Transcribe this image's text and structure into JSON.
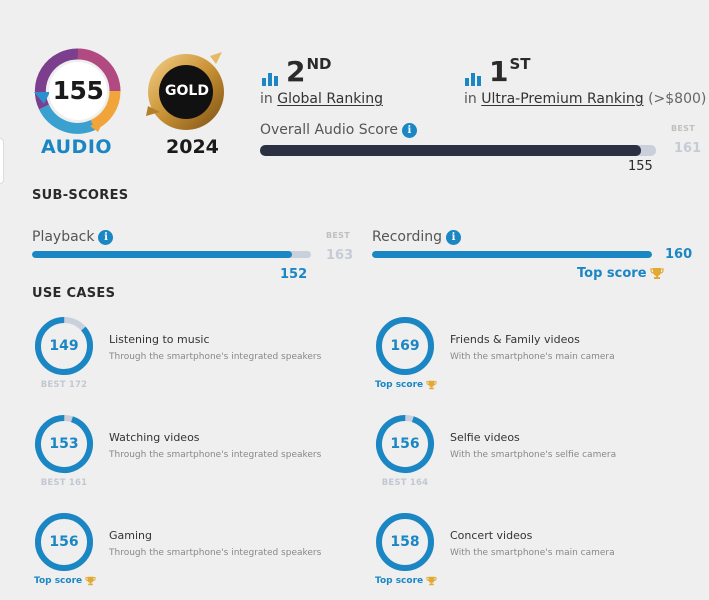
{
  "audio_badge": {
    "score": "155",
    "label": "AUDIO"
  },
  "gold_badge": {
    "text": "GOLD",
    "year": "2024"
  },
  "rankings": {
    "global": {
      "num": "2",
      "suffix": "ND",
      "prefix": "in",
      "link": "Global Ranking"
    },
    "segment": {
      "num": "1",
      "suffix": "ST",
      "prefix": "in",
      "link": "Ultra-Premium Ranking",
      "extra": "(>$800)"
    }
  },
  "overall": {
    "label": "Overall Audio Score",
    "score": "155",
    "best_label": "BEST",
    "best": "161",
    "value": 155,
    "max": 161
  },
  "sub_scores": {
    "title": "SUB-SCORES",
    "playback": {
      "label": "Playback",
      "score": "152",
      "best_label": "BEST",
      "best": "163",
      "value": 152,
      "max": 163
    },
    "recording": {
      "label": "Recording",
      "score": "160",
      "top_score": "Top score",
      "value": 160,
      "max": 160
    }
  },
  "use_cases": {
    "title": "USE CASES",
    "items": [
      {
        "score": "149",
        "title": "Listening to music",
        "subtitle": "Through the smartphone's integrated speakers",
        "best": "BEST 172",
        "value": 149,
        "max": 172
      },
      {
        "score": "169",
        "title": "Friends & Family videos",
        "subtitle": "With the smartphone's main camera",
        "top": "Top score",
        "value": 169,
        "max": 169
      },
      {
        "score": "153",
        "title": "Watching videos",
        "subtitle": "Through the smartphone's integrated speakers",
        "best": "BEST 161",
        "value": 153,
        "max": 161
      },
      {
        "score": "156",
        "title": "Selfie videos",
        "subtitle": "With the smartphone's selfie camera",
        "best": "BEST 164",
        "value": 156,
        "max": 164
      },
      {
        "score": "156",
        "title": "Gaming",
        "subtitle": "Through the smartphone's integrated speakers",
        "top": "Top score",
        "value": 156,
        "max": 156
      },
      {
        "score": "158",
        "title": "Concert videos",
        "subtitle": "With the smartphone's main camera",
        "top": "Top score",
        "value": 158,
        "max": 158
      }
    ]
  },
  "colors": {
    "accent": "#1a86c4",
    "track": "#c9d0dc",
    "dark_bar": "#2b3142",
    "trophy": "#e3a935"
  }
}
